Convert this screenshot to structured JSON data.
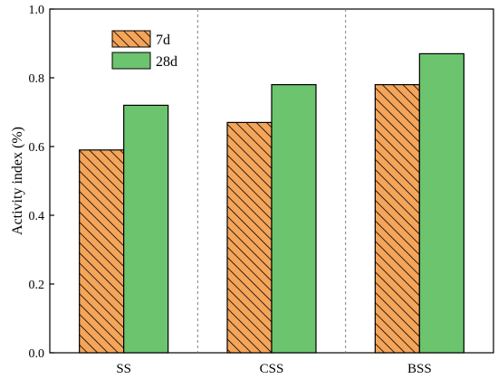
{
  "chart_data": {
    "type": "bar",
    "title": "",
    "xlabel": "",
    "ylabel": "Activity index (%)",
    "categories": [
      "SS",
      "CSS",
      "BSS"
    ],
    "ylim": [
      0,
      1.0
    ],
    "yticks": [
      "0.0",
      "0.2",
      "0.4",
      "0.6",
      "0.8",
      "1.0"
    ],
    "grid": false,
    "group_separators": "dashed vertical lines between categories",
    "legend": "top-left",
    "series": [
      {
        "name": "7d",
        "values": [
          0.59,
          0.67,
          0.78
        ],
        "color": "#F5A55A",
        "pattern": "diagonal-hatch"
      },
      {
        "name": "28d",
        "values": [
          0.72,
          0.78,
          0.87
        ],
        "color": "#6CC46E",
        "pattern": "solid"
      }
    ]
  }
}
